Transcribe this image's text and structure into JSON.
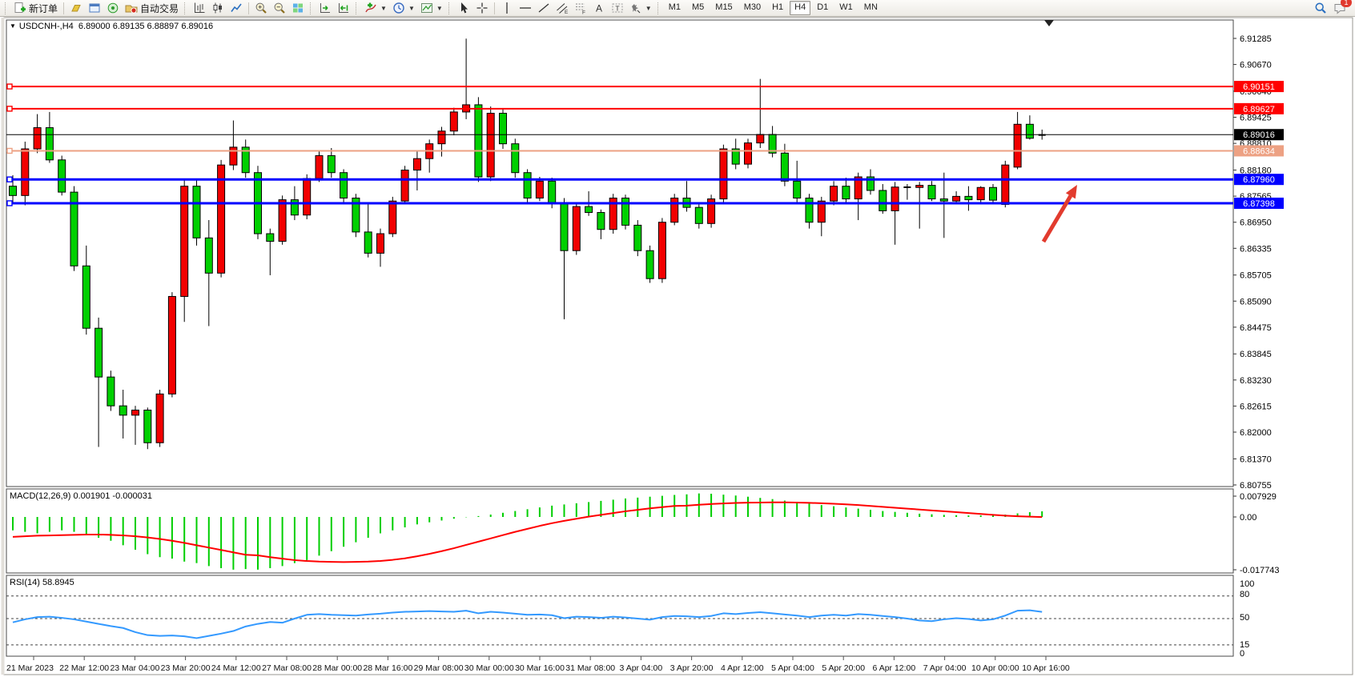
{
  "toolbar": {
    "new_order_label": "新订单",
    "autotrading_label": "自动交易",
    "timeframes": [
      "M1",
      "M5",
      "M15",
      "M30",
      "H1",
      "H4",
      "D1",
      "W1",
      "MN"
    ],
    "active_timeframe": "H4",
    "notification_count": "1"
  },
  "chart": {
    "title_symbol": "USDCNH-,H4",
    "title_ohlc": "6.89000 6.89135 6.88897 6.89016",
    "macd_label": "MACD(12,26,9) 0.001901 -0.000031",
    "rsi_label": "RSI(14) 58.8945"
  },
  "chart_data": {
    "type": "candlestick",
    "symbol": "USDCNH-",
    "timeframe": "H4",
    "ohlc_current": {
      "open": "6.89000",
      "high": "6.89135",
      "low": "6.88897",
      "close": "6.89016"
    },
    "bull_color": "#f20000",
    "bear_color": "#00d000",
    "price_axis_ticks": [
      "6.91285",
      "6.90670",
      "6.90040",
      "6.89425",
      "6.88810",
      "6.88180",
      "6.87565",
      "6.86950",
      "6.86335",
      "6.85705",
      "6.85090",
      "6.84475",
      "6.83845",
      "6.83230",
      "6.82615",
      "6.82000",
      "6.81370",
      "6.80755"
    ],
    "time_axis_labels": [
      "21 Mar 2023",
      "22 Mar 12:00",
      "23 Mar 04:00",
      "23 Mar 20:00",
      "24 Mar 12:00",
      "27 Mar 08:00",
      "28 Mar 00:00",
      "28 Mar 16:00",
      "29 Mar 08:00",
      "30 Mar 00:00",
      "30 Mar 16:00",
      "31 Mar 08:00",
      "3 Apr 04:00",
      "3 Apr 20:00",
      "4 Apr 12:00",
      "5 Apr 04:00",
      "5 Apr 20:00",
      "6 Apr 12:00",
      "7 Apr 04:00",
      "10 Apr 00:00",
      "10 Apr 16:00"
    ],
    "levels": [
      {
        "price": "6.90151",
        "value": 6.90151,
        "color": "#ff0000",
        "width": 2,
        "badge_text_color": "#ffffff",
        "kind": "resistance"
      },
      {
        "price": "6.89627",
        "value": 6.89627,
        "color": "#ff0000",
        "width": 2,
        "badge_text_color": "#ffffff",
        "kind": "resistance"
      },
      {
        "price": "6.89016",
        "value": 6.89016,
        "color": "#000000",
        "width": 1,
        "badge_text_color": "#ffffff",
        "kind": "current-price"
      },
      {
        "price": "6.88634",
        "value": 6.88634,
        "color": "#eda183",
        "width": 2,
        "badge_text_color": "#ffffff",
        "kind": "level"
      },
      {
        "price": "6.87960",
        "value": 6.8796,
        "color": "#0000ff",
        "width": 3,
        "badge_text_color": "#ffffff",
        "kind": "support"
      },
      {
        "price": "6.87398",
        "value": 6.87398,
        "color": "#0000ff",
        "width": 3,
        "badge_text_color": "#ffffff",
        "kind": "support"
      }
    ],
    "candles": [
      [
        6.878,
        6.8806,
        6.8738,
        6.8758
      ],
      [
        6.8758,
        6.8885,
        6.8735,
        6.8868
      ],
      [
        6.8868,
        6.895,
        6.8858,
        6.8918
      ],
      [
        6.8918,
        6.8955,
        6.8835,
        6.8842
      ],
      [
        6.8842,
        6.8852,
        6.8758,
        6.8766
      ],
      [
        6.8766,
        6.878,
        6.858,
        6.8592
      ],
      [
        6.8592,
        6.864,
        6.843,
        6.8445
      ],
      [
        6.8445,
        6.847,
        6.8165,
        6.833
      ],
      [
        6.833,
        6.8345,
        6.825,
        6.8262
      ],
      [
        6.8262,
        6.83,
        6.8185,
        6.824
      ],
      [
        6.824,
        6.8262,
        6.817,
        6.8252
      ],
      [
        6.8252,
        6.8258,
        6.816,
        6.8175
      ],
      [
        6.8175,
        6.83,
        6.8165,
        6.829
      ],
      [
        6.829,
        6.853,
        6.8282,
        6.852
      ],
      [
        6.852,
        6.8795,
        6.846,
        6.878
      ],
      [
        6.878,
        6.8798,
        6.864,
        6.8658
      ],
      [
        6.8658,
        6.87,
        6.845,
        6.8575
      ],
      [
        6.8575,
        6.8842,
        6.8565,
        6.883
      ],
      [
        6.883,
        6.8935,
        6.8818,
        6.8872
      ],
      [
        6.8872,
        6.889,
        6.88,
        6.8812
      ],
      [
        6.8812,
        6.8828,
        6.8655,
        6.8668
      ],
      [
        6.8668,
        6.868,
        6.857,
        6.865
      ],
      [
        6.865,
        6.8758,
        6.8642,
        6.8748
      ],
      [
        6.8748,
        6.878,
        6.87,
        6.8712
      ],
      [
        6.8712,
        6.8808,
        6.8702,
        6.8798
      ],
      [
        6.8798,
        6.8862,
        6.879,
        6.8852
      ],
      [
        6.8852,
        6.887,
        6.88,
        6.8812
      ],
      [
        6.8812,
        6.882,
        6.874,
        6.8752
      ],
      [
        6.8752,
        6.8762,
        6.866,
        6.8672
      ],
      [
        6.8672,
        6.8742,
        6.8612,
        6.8622
      ],
      [
        6.8622,
        6.868,
        6.859,
        6.8668
      ],
      [
        6.8668,
        6.8755,
        6.866,
        6.8745
      ],
      [
        6.8745,
        6.8828,
        6.8738,
        6.8818
      ],
      [
        6.8818,
        6.8862,
        6.877,
        6.8845
      ],
      [
        6.8845,
        6.889,
        6.8812,
        6.888
      ],
      [
        6.888,
        6.892,
        6.885,
        6.891
      ],
      [
        6.891,
        6.8965,
        6.89,
        6.8955
      ],
      [
        6.8955,
        6.9128,
        6.8938,
        6.8972
      ],
      [
        6.8972,
        6.899,
        6.879,
        6.8802
      ],
      [
        6.8802,
        6.8968,
        6.8792,
        6.8952
      ],
      [
        6.8952,
        6.8962,
        6.8868,
        6.888
      ],
      [
        6.888,
        6.8892,
        6.88,
        6.8812
      ],
      [
        6.8812,
        6.882,
        6.8742,
        6.8752
      ],
      [
        6.8752,
        6.8802,
        6.8745,
        6.8792
      ],
      [
        6.8792,
        6.88,
        6.8728,
        6.8738
      ],
      [
        6.8738,
        6.8752,
        6.8466,
        6.8628
      ],
      [
        6.8628,
        6.8742,
        6.8618,
        6.8732
      ],
      [
        6.8732,
        6.8768,
        6.871,
        6.8718
      ],
      [
        6.8718,
        6.8725,
        6.8655,
        6.8678
      ],
      [
        6.8678,
        6.8762,
        6.8668,
        6.8752
      ],
      [
        6.8752,
        6.876,
        6.8678,
        6.8688
      ],
      [
        6.8688,
        6.87,
        6.8615,
        6.8628
      ],
      [
        6.8628,
        6.864,
        6.8552,
        6.8562
      ],
      [
        6.8562,
        6.8705,
        6.8552,
        6.8695
      ],
      [
        6.8695,
        6.8762,
        6.8688,
        6.8752
      ],
      [
        6.8752,
        6.8792,
        6.872,
        6.873
      ],
      [
        6.873,
        6.8742,
        6.868,
        6.8692
      ],
      [
        6.8692,
        6.876,
        6.8682,
        6.875
      ],
      [
        6.875,
        6.8878,
        6.8742,
        6.8868
      ],
      [
        6.8868,
        6.8892,
        6.882,
        6.8832
      ],
      [
        6.8832,
        6.8892,
        6.8822,
        6.8882
      ],
      [
        6.8882,
        6.9033,
        6.887,
        6.8902
      ],
      [
        6.8902,
        6.8922,
        6.8848,
        6.8858
      ],
      [
        6.8858,
        6.888,
        6.878,
        6.8792
      ],
      [
        6.8792,
        6.884,
        6.874,
        6.8752
      ],
      [
        6.8752,
        6.8762,
        6.868,
        6.8695
      ],
      [
        6.8695,
        6.8755,
        6.8662,
        6.8745
      ],
      [
        6.8745,
        6.8792,
        6.8735,
        6.878
      ],
      [
        6.878,
        6.88,
        6.874,
        6.875
      ],
      [
        6.875,
        6.8812,
        6.87,
        6.8802
      ],
      [
        6.8802,
        6.882,
        6.876,
        6.877
      ],
      [
        6.877,
        6.8785,
        6.8715,
        6.8722
      ],
      [
        6.8722,
        6.879,
        6.8642,
        6.8778
      ],
      [
        6.8778,
        6.8785,
        6.8748,
        6.8777
      ],
      [
        6.8777,
        6.879,
        6.868,
        6.8782
      ],
      [
        6.8782,
        6.8792,
        6.8745,
        6.875
      ],
      [
        6.875,
        6.8812,
        6.8658,
        6.8745
      ],
      [
        6.8745,
        6.8768,
        6.8738,
        6.8756
      ],
      [
        6.8756,
        6.878,
        6.8722,
        6.8748
      ],
      [
        6.8748,
        6.878,
        6.874,
        6.8777
      ],
      [
        6.8777,
        6.8785,
        6.8738,
        6.8747
      ],
      [
        6.8737,
        6.884,
        6.873,
        6.883
      ],
      [
        6.8825,
        6.8955,
        6.882,
        6.8926
      ],
      [
        6.8926,
        6.8947,
        6.889,
        6.8893
      ],
      [
        6.89,
        6.89135,
        6.88897,
        6.89016
      ]
    ],
    "indicators": [
      {
        "name": "MACD",
        "params": "12,26,9",
        "label": "MACD(12,26,9) 0.001901 -0.000031",
        "main_value": 0.001901,
        "signal_value": -3.1e-05,
        "axis_ticks": [
          "0.007929",
          "0.00",
          "-0.017743"
        ],
        "range": [
          -0.017743,
          0.007929
        ],
        "hist_color": "#00ce00",
        "signal_color": "#ff0000",
        "histogram": [
          -4.5,
          -5.0,
          -5.5,
          -5.0,
          -4.5,
          -5.0,
          -6.0,
          -7.0,
          -8.0,
          -9.5,
          -11.0,
          -12.5,
          -13.5,
          -14.0,
          -15.0,
          -15.5,
          -16.5,
          -17.2,
          -17.7,
          -17.5,
          -17.7,
          -17.2,
          -16.5,
          -15.5,
          -14.5,
          -13.0,
          -11.5,
          -10.0,
          -8.5,
          -7.0,
          -5.5,
          -4.5,
          -3.5,
          -2.5,
          -1.8,
          -1.2,
          -0.6,
          -0.1,
          0.3,
          0.8,
          1.4,
          2.0,
          2.6,
          3.2,
          3.8,
          4.2,
          4.6,
          5.0,
          5.4,
          5.8,
          6.2,
          6.5,
          6.8,
          7.1,
          7.4,
          7.6,
          7.9,
          7.8,
          7.5,
          7.2,
          6.8,
          6.4,
          6.0,
          5.5,
          5.0,
          4.5,
          4.0,
          3.6,
          3.2,
          2.8,
          2.4,
          2.0,
          1.7,
          1.4,
          1.1,
          0.9,
          0.7,
          0.6,
          0.5,
          0.5,
          0.6,
          0.8,
          1.2,
          1.6,
          1.901
        ],
        "signal": [
          -6.7,
          -6.5,
          -6.3,
          -6.2,
          -6.1,
          -6.0,
          -5.9,
          -5.9,
          -6.0,
          -6.2,
          -6.5,
          -6.9,
          -7.4,
          -8.0,
          -8.7,
          -9.5,
          -10.3,
          -11.1,
          -11.9,
          -12.7,
          -12.9,
          -13.5,
          -14.0,
          -14.5,
          -14.8,
          -15.0,
          -15.1,
          -15.15,
          -15.1,
          -15.0,
          -14.8,
          -14.4,
          -13.9,
          -13.2,
          -12.4,
          -11.5,
          -10.5,
          -9.4,
          -8.3,
          -7.2,
          -6.1,
          -5.0,
          -4.0,
          -3.0,
          -2.1,
          -1.3,
          -0.6,
          0.1,
          0.7,
          1.3,
          1.9,
          2.4,
          2.9,
          3.3,
          3.7,
          3.8,
          4.1,
          4.35,
          4.55,
          4.7,
          4.8,
          4.85,
          4.9,
          4.9,
          4.85,
          4.75,
          4.6,
          4.45,
          4.25,
          4.0,
          3.7,
          3.4,
          3.1,
          2.8,
          2.5,
          2.2,
          1.9,
          1.6,
          1.3,
          1.0,
          0.7,
          0.45,
          0.25,
          0.1,
          -0.031
        ]
      },
      {
        "name": "RSI",
        "params": "14",
        "label": "RSI(14) 58.8945",
        "value": 58.8945,
        "axis_ticks": [
          "100",
          "80",
          "50",
          "15",
          "0"
        ],
        "levels": [
          80,
          50,
          15
        ],
        "range": [
          0,
          100
        ],
        "color": "#3399ff",
        "series": [
          45,
          49,
          52,
          52.5,
          51,
          49,
          46,
          43,
          40,
          37.5,
          32,
          28,
          27,
          27.5,
          26.5,
          24,
          27,
          30,
          33.5,
          39.5,
          43,
          45.5,
          44.5,
          50,
          55,
          56,
          55,
          54.5,
          54,
          55.5,
          56.5,
          58,
          59,
          59.5,
          60,
          59.5,
          59,
          60.5,
          57,
          59,
          58,
          56.5,
          55,
          55.5,
          54.5,
          50.5,
          52.5,
          52,
          51,
          52.5,
          51.5,
          50,
          48.5,
          52,
          53.5,
          53,
          52,
          53.5,
          57,
          56,
          57.5,
          58.5,
          57,
          55.5,
          54,
          52,
          54,
          55,
          54,
          56,
          55,
          53.5,
          52,
          50,
          47.5,
          46.5,
          49,
          50.5,
          49.5,
          47.5,
          49,
          54,
          60.5,
          61,
          58.9
        ]
      }
    ],
    "annotations": [
      {
        "type": "arrow",
        "color": "#e23b2e",
        "from": [
          1303,
          302
        ],
        "to": [
          1345,
          231
        ]
      }
    ]
  }
}
